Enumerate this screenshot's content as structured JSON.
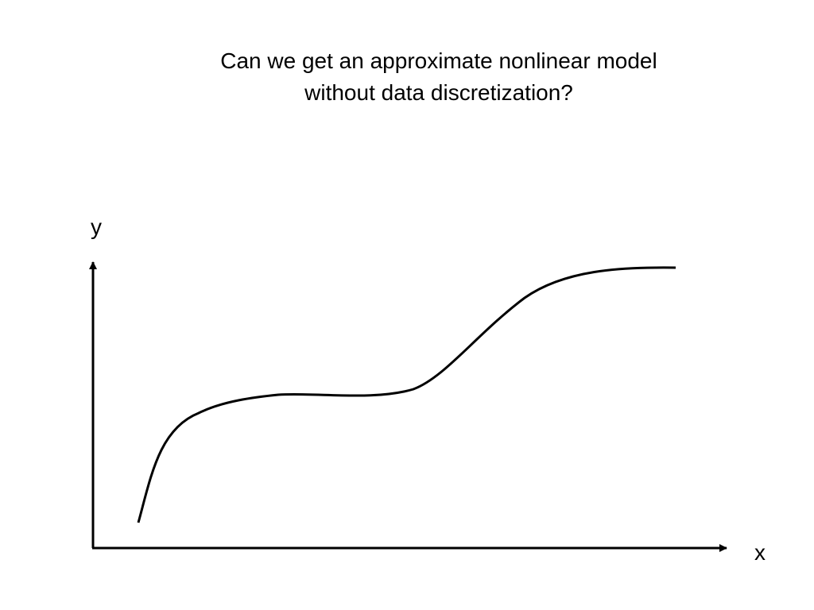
{
  "title": {
    "lines": [
      "Can we get an approximate nonlinear model",
      "without data discretization?"
    ]
  },
  "axes": {
    "y_label": "y",
    "x_label": "x"
  }
}
